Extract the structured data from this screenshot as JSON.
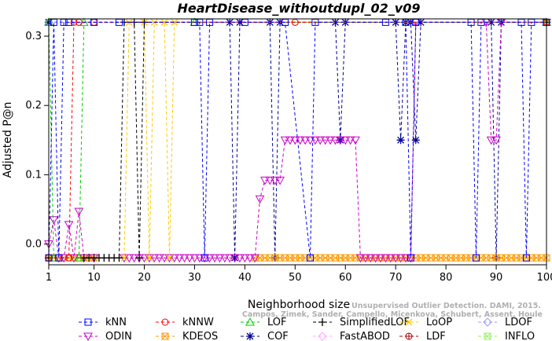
{
  "chart_data": {
    "type": "line",
    "title": "HeartDisease_withoutdupl_02_v09",
    "xlabel": "Neighborhood size",
    "ylabel": "Adjusted P@n",
    "xlim": [
      1,
      100
    ],
    "ylim": [
      -0.03,
      0.325
    ],
    "xticks": [
      1,
      10,
      20,
      30,
      40,
      50,
      60,
      70,
      80,
      90,
      100
    ],
    "yticks": [
      0.0,
      0.1,
      0.2,
      0.3
    ],
    "ytick_labels": [
      "0.0",
      "0.1",
      "0.2",
      "0.3"
    ],
    "legend_position": "bottom",
    "low_value": -0.02,
    "high_value": 0.32,
    "series": [
      {
        "name": "kNN",
        "color": "#0000ff",
        "marker": "square",
        "points": [
          [
            1,
            -0.02
          ],
          [
            2,
            0.32
          ],
          [
            3,
            -0.02
          ],
          [
            4,
            0.32
          ],
          [
            5,
            0.32
          ],
          [
            10,
            0.32
          ],
          [
            15,
            0.32
          ],
          [
            30,
            0.32
          ],
          [
            31,
            0.32
          ],
          [
            32,
            -0.02
          ],
          [
            33,
            0.32
          ],
          [
            40,
            0.32
          ],
          [
            48,
            0.32
          ],
          [
            53,
            -0.02
          ],
          [
            54,
            0.32
          ],
          [
            68,
            0.32
          ],
          [
            72,
            0.32
          ],
          [
            73,
            -0.02
          ],
          [
            74,
            0.32
          ],
          [
            85,
            0.32
          ],
          [
            86,
            -0.02
          ],
          [
            87,
            0.32
          ],
          [
            95,
            0.32
          ],
          [
            96,
            -0.02
          ],
          [
            97,
            0.32
          ],
          [
            100,
            0.32
          ]
        ]
      },
      {
        "name": "kNNW",
        "color": "#ff0000",
        "marker": "circle",
        "points": [
          [
            1,
            -0.02
          ],
          [
            5,
            -0.02
          ],
          [
            6,
            0.32
          ],
          [
            7,
            0.32
          ],
          [
            10,
            0.32
          ],
          [
            50,
            0.32
          ],
          [
            100,
            0.32
          ]
        ]
      },
      {
        "name": "LOF",
        "color": "#00cc00",
        "marker": "triangle",
        "points": [
          [
            1,
            0.32
          ],
          [
            2,
            -0.02
          ],
          [
            7,
            -0.02
          ],
          [
            8,
            0.32
          ],
          [
            30,
            0.32
          ],
          [
            100,
            0.32
          ]
        ]
      },
      {
        "name": "SimplifiedLOF",
        "color": "#000000",
        "marker": "plus",
        "points": [
          [
            1,
            -0.02
          ],
          [
            8,
            -0.02
          ],
          [
            9,
            -0.02
          ],
          [
            10,
            -0.02
          ],
          [
            11,
            -0.02
          ],
          [
            12,
            -0.02
          ],
          [
            13,
            -0.02
          ],
          [
            14,
            -0.02
          ],
          [
            15,
            -0.02
          ],
          [
            16,
            0.32
          ],
          [
            18,
            0.32
          ],
          [
            19,
            -0.02
          ],
          [
            20,
            0.32
          ],
          [
            100,
            0.32
          ]
        ]
      },
      {
        "name": "LoOP",
        "color": "#ffcc00",
        "marker": "x",
        "points": [
          [
            1,
            -0.02
          ],
          [
            16,
            -0.02
          ],
          [
            17,
            0.32
          ],
          [
            20,
            0.32
          ],
          [
            21,
            -0.02
          ],
          [
            22,
            0.32
          ],
          [
            24,
            0.32
          ],
          [
            25,
            -0.02
          ],
          [
            26,
            0.32
          ],
          [
            100,
            0.32
          ]
        ]
      },
      {
        "name": "LDOF",
        "color": "#9999ff",
        "marker": "diamond",
        "points": [
          [
            1,
            0.32
          ],
          [
            100,
            0.32
          ]
        ]
      },
      {
        "name": "ODIN",
        "color": "#cc00cc",
        "marker": "triangle-down",
        "points": [
          [
            1,
            0.0
          ],
          [
            2,
            0.035
          ],
          [
            3,
            -0.02
          ],
          [
            4,
            -0.02
          ],
          [
            5,
            0.028
          ],
          [
            6,
            -0.02
          ],
          [
            7,
            0.047
          ],
          [
            8,
            -0.02
          ],
          [
            10,
            -0.02
          ],
          [
            16,
            -0.02
          ],
          [
            17,
            -0.02
          ],
          [
            18,
            -0.02
          ],
          [
            19,
            -0.02
          ],
          [
            20,
            -0.02
          ],
          [
            21,
            -0.02
          ],
          [
            22,
            -0.02
          ],
          [
            23,
            -0.02
          ],
          [
            24,
            -0.02
          ],
          [
            25,
            -0.02
          ],
          [
            26,
            -0.02
          ],
          [
            27,
            -0.02
          ],
          [
            28,
            -0.02
          ],
          [
            29,
            -0.02
          ],
          [
            30,
            -0.02
          ],
          [
            31,
            -0.02
          ],
          [
            32,
            -0.02
          ],
          [
            33,
            -0.02
          ],
          [
            34,
            -0.02
          ],
          [
            35,
            -0.02
          ],
          [
            36,
            -0.02
          ],
          [
            37,
            -0.02
          ],
          [
            38,
            -0.02
          ],
          [
            39,
            -0.02
          ],
          [
            40,
            -0.02
          ],
          [
            41,
            -0.02
          ],
          [
            42,
            -0.02
          ],
          [
            43,
            0.065
          ],
          [
            44,
            0.092
          ],
          [
            45,
            0.092
          ],
          [
            46,
            0.092
          ],
          [
            47,
            0.092
          ],
          [
            48,
            0.15
          ],
          [
            49,
            0.15
          ],
          [
            50,
            0.15
          ],
          [
            51,
            0.15
          ],
          [
            52,
            0.15
          ],
          [
            53,
            0.15
          ],
          [
            54,
            0.15
          ],
          [
            55,
            0.15
          ],
          [
            56,
            0.15
          ],
          [
            57,
            0.15
          ],
          [
            58,
            0.15
          ],
          [
            59,
            0.15
          ],
          [
            60,
            0.15
          ],
          [
            61,
            0.15
          ],
          [
            62,
            0.15
          ],
          [
            63,
            -0.02
          ],
          [
            64,
            -0.02
          ],
          [
            65,
            -0.02
          ],
          [
            66,
            -0.02
          ],
          [
            67,
            -0.02
          ],
          [
            68,
            -0.02
          ],
          [
            69,
            -0.02
          ],
          [
            70,
            -0.02
          ],
          [
            71,
            -0.02
          ],
          [
            72,
            -0.02
          ],
          [
            73,
            -0.02
          ],
          [
            74,
            0.32
          ],
          [
            88,
            0.32
          ],
          [
            89,
            0.15
          ],
          [
            90,
            0.15
          ],
          [
            91,
            0.32
          ],
          [
            100,
            0.32
          ]
        ]
      },
      {
        "name": "KDEOS",
        "color": "#ff9900",
        "marker": "square-x",
        "points": [
          [
            1,
            -0.02
          ],
          [
            2,
            -0.02
          ],
          [
            3,
            -0.02
          ],
          [
            4,
            -0.02
          ],
          [
            5,
            -0.02
          ],
          [
            6,
            -0.02
          ],
          [
            7,
            -0.02
          ],
          [
            8,
            -0.02
          ],
          [
            9,
            -0.02
          ],
          [
            10,
            -0.02
          ],
          [
            42,
            -0.02
          ],
          [
            43,
            -0.02
          ],
          [
            44,
            -0.02
          ],
          [
            45,
            -0.02
          ],
          [
            46,
            -0.02
          ],
          [
            47,
            -0.02
          ],
          [
            48,
            -0.02
          ],
          [
            49,
            -0.02
          ],
          [
            50,
            -0.02
          ],
          [
            51,
            -0.02
          ],
          [
            52,
            -0.02
          ],
          [
            53,
            -0.02
          ],
          [
            54,
            -0.02
          ],
          [
            55,
            -0.02
          ],
          [
            56,
            -0.02
          ],
          [
            57,
            -0.02
          ],
          [
            58,
            -0.02
          ],
          [
            59,
            -0.02
          ],
          [
            60,
            -0.02
          ],
          [
            61,
            -0.02
          ],
          [
            62,
            -0.02
          ],
          [
            63,
            -0.02
          ],
          [
            64,
            -0.02
          ],
          [
            65,
            -0.02
          ],
          [
            66,
            -0.02
          ],
          [
            67,
            -0.02
          ],
          [
            68,
            -0.02
          ],
          [
            69,
            -0.02
          ],
          [
            70,
            -0.02
          ],
          [
            71,
            -0.02
          ],
          [
            72,
            -0.02
          ],
          [
            73,
            -0.02
          ],
          [
            74,
            -0.02
          ],
          [
            75,
            -0.02
          ],
          [
            76,
            -0.02
          ],
          [
            77,
            -0.02
          ],
          [
            78,
            -0.02
          ],
          [
            79,
            -0.02
          ],
          [
            80,
            -0.02
          ],
          [
            81,
            -0.02
          ],
          [
            82,
            -0.02
          ],
          [
            83,
            -0.02
          ],
          [
            84,
            -0.02
          ],
          [
            85,
            -0.02
          ],
          [
            86,
            -0.02
          ],
          [
            87,
            -0.02
          ],
          [
            88,
            -0.02
          ],
          [
            89,
            -0.02
          ],
          [
            90,
            -0.02
          ],
          [
            91,
            -0.02
          ],
          [
            92,
            -0.02
          ],
          [
            93,
            -0.02
          ],
          [
            94,
            -0.02
          ],
          [
            95,
            -0.02
          ],
          [
            96,
            -0.02
          ],
          [
            97,
            -0.02
          ],
          [
            98,
            -0.02
          ],
          [
            99,
            -0.02
          ],
          [
            100,
            -0.02
          ]
        ]
      },
      {
        "name": "COF",
        "color": "#000099",
        "marker": "star",
        "points": [
          [
            1,
            0.32
          ],
          [
            37,
            0.32
          ],
          [
            38,
            -0.02
          ],
          [
            39,
            0.32
          ],
          [
            45,
            0.32
          ],
          [
            46,
            -0.02
          ],
          [
            47,
            0.32
          ],
          [
            58,
            0.32
          ],
          [
            59,
            0.15
          ],
          [
            60,
            0.32
          ],
          [
            70,
            0.32
          ],
          [
            71,
            0.15
          ],
          [
            72,
            0.32
          ],
          [
            73,
            0.32
          ],
          [
            74,
            0.15
          ],
          [
            75,
            0.32
          ],
          [
            89,
            0.32
          ],
          [
            90,
            -0.02
          ],
          [
            91,
            0.32
          ],
          [
            100,
            0.32
          ]
        ]
      },
      {
        "name": "FastABOD",
        "color": "#ffaaff",
        "marker": "diamond",
        "points": [
          [
            1,
            0.32
          ],
          [
            100,
            0.32
          ]
        ]
      },
      {
        "name": "LDF",
        "color": "#aa0000",
        "marker": "circle-plus",
        "points": [
          [
            1,
            0.32
          ],
          [
            100,
            0.32
          ]
        ]
      },
      {
        "name": "INFLO",
        "color": "#99ee66",
        "marker": "square-x",
        "points": [
          [
            1,
            0.32
          ],
          [
            100,
            0.32
          ]
        ]
      }
    ]
  },
  "credit": {
    "line1": "Unsupervised Outlier Detection. DAMI, 2015.",
    "line2": "Campos, Zimek, Sander, Campello, Micenkova, Schubert, Assent, Houle"
  }
}
